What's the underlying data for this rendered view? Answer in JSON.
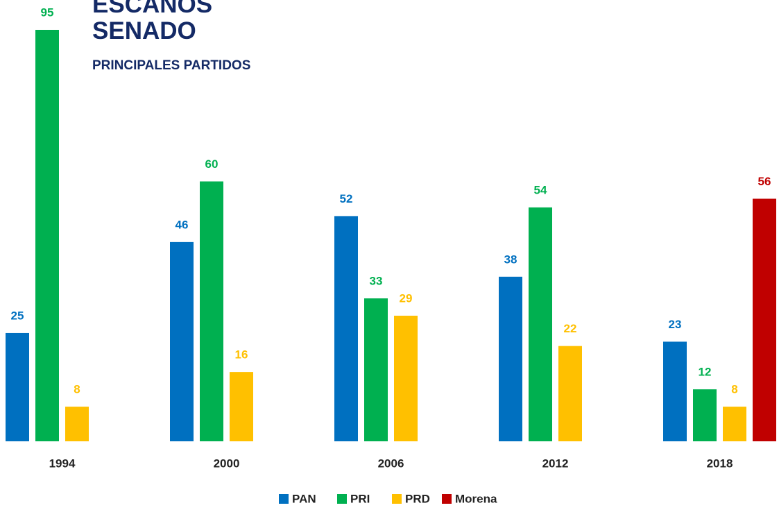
{
  "chart_data": {
    "type": "bar",
    "title": "ESCAÑOS SENADO",
    "subtitle": "PRINCIPALES PARTIDOS",
    "categories": [
      "1994",
      "2000",
      "2006",
      "2012",
      "2018"
    ],
    "series": [
      {
        "name": "PAN",
        "color": "#0070c0",
        "values": [
          25,
          46,
          52,
          38,
          23
        ]
      },
      {
        "name": "PRI",
        "color": "#00b050",
        "values": [
          95,
          60,
          33,
          54,
          12
        ]
      },
      {
        "name": "PRD",
        "color": "#ffc000",
        "values": [
          8,
          16,
          29,
          22,
          8
        ]
      },
      {
        "name": "Morena",
        "color": "#c00000",
        "values": [
          null,
          null,
          null,
          null,
          56
        ]
      }
    ],
    "legend": "bottom"
  }
}
